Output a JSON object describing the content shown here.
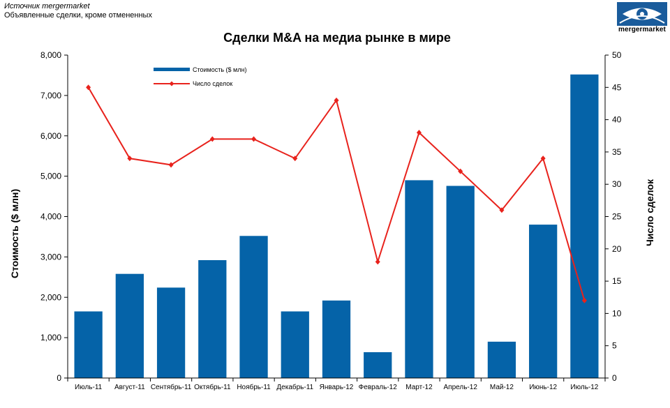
{
  "header": {
    "source_line": "Источник mergermarket",
    "note_line": "Объявленные сделки, кроме отмененных",
    "logo_text": "mergermarket"
  },
  "chart_data": {
    "type": "bar",
    "title": "Сделки  M&A на медиа рынке в мире",
    "categories": [
      "Июль-11",
      "Август-11",
      "Сентябрь-11",
      "Октябрь-11",
      "Ноябрь-11",
      "Декабрь-11",
      "Январь-12",
      "Февраль-12",
      "Март-12",
      "Апрель-12",
      "Май-12",
      "Июнь-12",
      "Июль-12"
    ],
    "series": [
      {
        "name": "Стоимость ($ млн)",
        "type": "bar",
        "axis": "left",
        "color": "#0563A8",
        "values": [
          1650,
          2580,
          2240,
          2920,
          3520,
          1650,
          1920,
          640,
          4900,
          4760,
          900,
          3800,
          7520
        ]
      },
      {
        "name": "Число сделок",
        "type": "line",
        "axis": "right",
        "color": "#E8221C",
        "values": [
          45,
          34,
          33,
          37,
          37,
          34,
          43,
          18,
          38,
          32,
          26,
          34,
          12
        ]
      }
    ],
    "ylabel": "Стоимость  ($ млн)",
    "y2label": "Число сделок",
    "ylim": [
      0,
      8000
    ],
    "y2lim": [
      0,
      50
    ],
    "yticks": [
      "0",
      "1,000",
      "2,000",
      "3,000",
      "4,000",
      "5,000",
      "6,000",
      "7,000",
      "8,000"
    ],
    "y2ticks": [
      "0",
      "5",
      "10",
      "15",
      "20",
      "25",
      "30",
      "35",
      "40",
      "45",
      "50"
    ],
    "grid": false,
    "legend_position": "top-left"
  }
}
